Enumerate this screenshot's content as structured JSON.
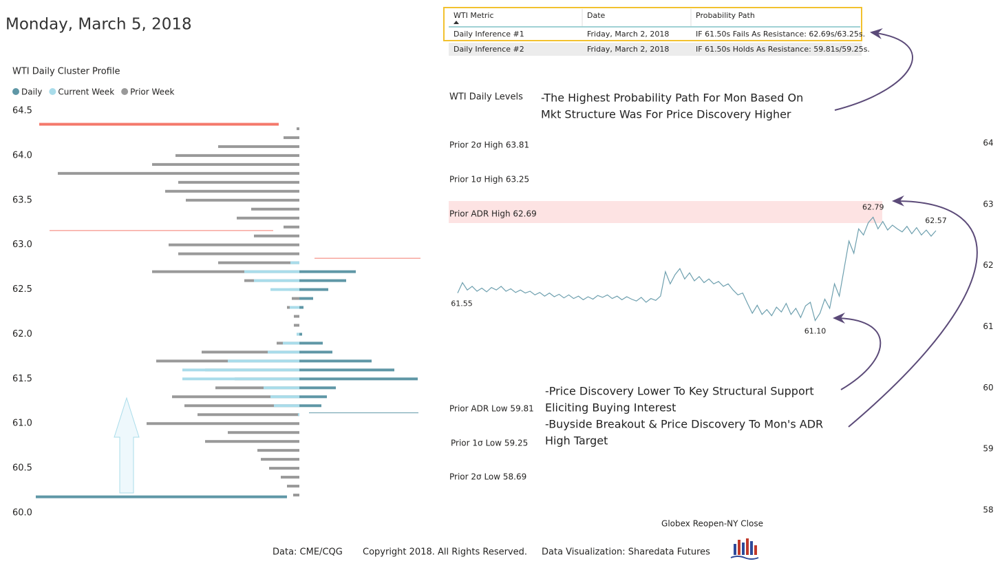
{
  "header": {
    "title": "Monday, March 5, 2018"
  },
  "table": {
    "columns": [
      "WTI Metric",
      "Date",
      "Probability Path"
    ],
    "rows": [
      [
        "Daily Inference #1",
        "Friday, March 2, 2018",
        "IF 61.50s Fails As Resistance: 62.69s/63.25s."
      ],
      [
        "Daily Inference #2",
        "Friday, March 2, 2018",
        "IF 61.50s Holds As Resistance: 59.81s/59.25s."
      ]
    ]
  },
  "notes": [
    [
      "-The Highest Probability Path For Mon Based On",
      "Mkt Structure Was For Price Discovery Higher"
    ],
    [
      "-Price Discovery Lower To Key Structural Support",
      "Eliciting Buying Interest",
      "-Buyside Breakout & Price Discovery To Mon's ADR",
      "High Target"
    ]
  ],
  "footer": [
    "Data: CME/CQG",
    "Copyright 2018. All Rights Reserved.",
    "Data Visualization: Sharedata Futures"
  ],
  "chart_data": [
    {
      "type": "bar",
      "orientation": "horizontal",
      "title": "WTI Daily Cluster Profile",
      "y": [
        64.3,
        64.2,
        64.1,
        64.0,
        63.9,
        63.8,
        63.7,
        63.6,
        63.5,
        63.4,
        63.3,
        63.2,
        63.1,
        63.0,
        62.9,
        62.8,
        62.7,
        62.6,
        62.5,
        62.4,
        62.3,
        62.2,
        62.1,
        62.0,
        61.9,
        61.8,
        61.7,
        61.6,
        61.5,
        61.4,
        61.3,
        61.2,
        61.1,
        61.0,
        60.9,
        60.8,
        60.7,
        60.6,
        60.5,
        60.4,
        60.3,
        60.2
      ],
      "series": [
        {
          "name": "Daily",
          "color": "#5f97a6",
          "values": [
            0,
            0,
            0,
            0,
            0,
            0,
            0,
            0,
            0,
            0,
            0,
            0,
            0,
            0,
            0,
            0,
            82,
            68,
            42,
            20,
            6,
            0,
            0,
            4,
            34,
            48,
            105,
            138,
            172,
            53,
            40,
            32,
            0,
            0,
            0,
            0,
            0,
            0,
            0,
            0,
            0,
            0
          ]
        },
        {
          "name": "Current Week",
          "color": "#a9dcea",
          "values": [
            0,
            0,
            0,
            0,
            0,
            0,
            0,
            0,
            0,
            0,
            0,
            0,
            0,
            0,
            0,
            13,
            80,
            66,
            42,
            0,
            14,
            0,
            0,
            4,
            24,
            46,
            104,
            170,
            170,
            52,
            42,
            37,
            2,
            0,
            0,
            0,
            0,
            0,
            0,
            0,
            0,
            0
          ]
        },
        {
          "name": "Prior Week",
          "color": "#999999",
          "values": [
            4,
            23,
            118,
            180,
            214,
            351,
            176,
            195,
            165,
            70,
            91,
            23,
            66,
            190,
            176,
            118,
            214,
            80,
            14,
            11,
            18,
            8,
            8,
            4,
            33,
            142,
            208,
            137,
            94,
            122,
            185,
            167,
            148,
            222,
            104,
            137,
            61,
            56,
            44,
            27,
            18,
            9
          ]
        }
      ],
      "xlim": [
        0,
        400
      ],
      "ylim": [
        60,
        64.5
      ],
      "yticks": [
        {
          "value": 60,
          "label": "60.0"
        },
        60.5,
        {
          "value": 61,
          "label": "61.0"
        },
        61.5,
        {
          "value": 62,
          "label": "62.0"
        },
        62.5,
        {
          "value": 63,
          "label": "63.0"
        },
        63.5,
        {
          "value": 64,
          "label": "64.0"
        },
        64.5
      ],
      "reference_lines": [
        {
          "value": 64.35,
          "color": "#f4796b"
        },
        {
          "value": 63.16,
          "color": "#f4796b"
        },
        {
          "value": 62.85,
          "color": "#f4796b"
        },
        {
          "value": 61.12,
          "color": "#5f97a6"
        },
        {
          "value": 60.18,
          "color": "#5f97a6"
        }
      ]
    },
    {
      "type": "line",
      "title": "WTI Daily Levels",
      "x_label": "Globex Reopen-NY Close",
      "color": "#6d9fae",
      "values": [
        61.55,
        61.72,
        61.6,
        61.66,
        61.58,
        61.63,
        61.57,
        61.64,
        61.6,
        61.66,
        61.58,
        61.62,
        61.56,
        61.6,
        61.55,
        61.58,
        61.52,
        61.56,
        61.5,
        61.55,
        61.49,
        61.53,
        61.47,
        61.52,
        61.46,
        61.5,
        61.44,
        61.49,
        61.45,
        61.51,
        61.48,
        61.52,
        61.46,
        61.5,
        61.44,
        61.49,
        61.45,
        61.42,
        61.48,
        61.4,
        61.46,
        61.43,
        61.5,
        61.9,
        61.7,
        61.85,
        61.95,
        61.78,
        61.88,
        61.75,
        61.82,
        61.72,
        61.78,
        61.7,
        61.74,
        61.66,
        61.7,
        61.6,
        61.52,
        61.55,
        61.38,
        61.22,
        61.35,
        61.2,
        61.28,
        61.18,
        61.32,
        61.24,
        61.38,
        61.2,
        61.3,
        61.15,
        61.34,
        61.4,
        61.1,
        61.22,
        61.45,
        61.3,
        61.7,
        61.5,
        61.95,
        62.4,
        62.2,
        62.6,
        62.5,
        62.7,
        62.79,
        62.6,
        62.72,
        62.58,
        62.66,
        62.6,
        62.55,
        62.64,
        62.52,
        62.62,
        62.5,
        62.58,
        62.48,
        62.57
      ],
      "value_labels": [
        "61.55",
        null,
        null,
        null,
        null,
        null,
        null,
        null,
        null,
        null,
        null,
        null,
        null,
        null,
        null,
        null,
        null,
        null,
        null,
        null,
        null,
        null,
        null,
        null,
        null,
        null,
        null,
        null,
        null,
        null,
        null,
        null,
        null,
        null,
        null,
        null,
        null,
        null,
        null,
        null,
        null,
        null,
        null,
        null,
        null,
        null,
        null,
        null,
        null,
        null,
        null,
        null,
        null,
        null,
        null,
        null,
        null,
        null,
        null,
        null,
        null,
        null,
        null,
        null,
        null,
        null,
        null,
        null,
        null,
        null,
        null,
        null,
        null,
        null,
        "61.10",
        null,
        null,
        null,
        null,
        null,
        null,
        null,
        null,
        null,
        null,
        null,
        "62.79",
        null,
        null,
        null,
        null,
        null,
        null,
        null,
        null,
        null,
        null,
        null,
        null,
        "62.57"
      ],
      "ylim": [
        58,
        64
      ],
      "yticks": [
        58,
        59,
        60,
        61,
        62,
        63,
        64
      ],
      "levels": [
        {
          "label": "Prior 2σ High 63.81",
          "color": "#b5525a"
        },
        {
          "label": "Prior 1σ High 63.25",
          "color": "#b5525a"
        },
        {
          "label": "Prior ADR High 62.69",
          "color": "#b5525a"
        },
        {
          "label": "Prior ADR Low 59.81",
          "color": "#6a9fb0"
        },
        {
          "label": "Prior 1σ Low 59.25",
          "color": "#6a9fb0"
        },
        {
          "label": "Prior 2σ Low 58.69",
          "color": "#6a9fb0"
        }
      ]
    }
  ]
}
